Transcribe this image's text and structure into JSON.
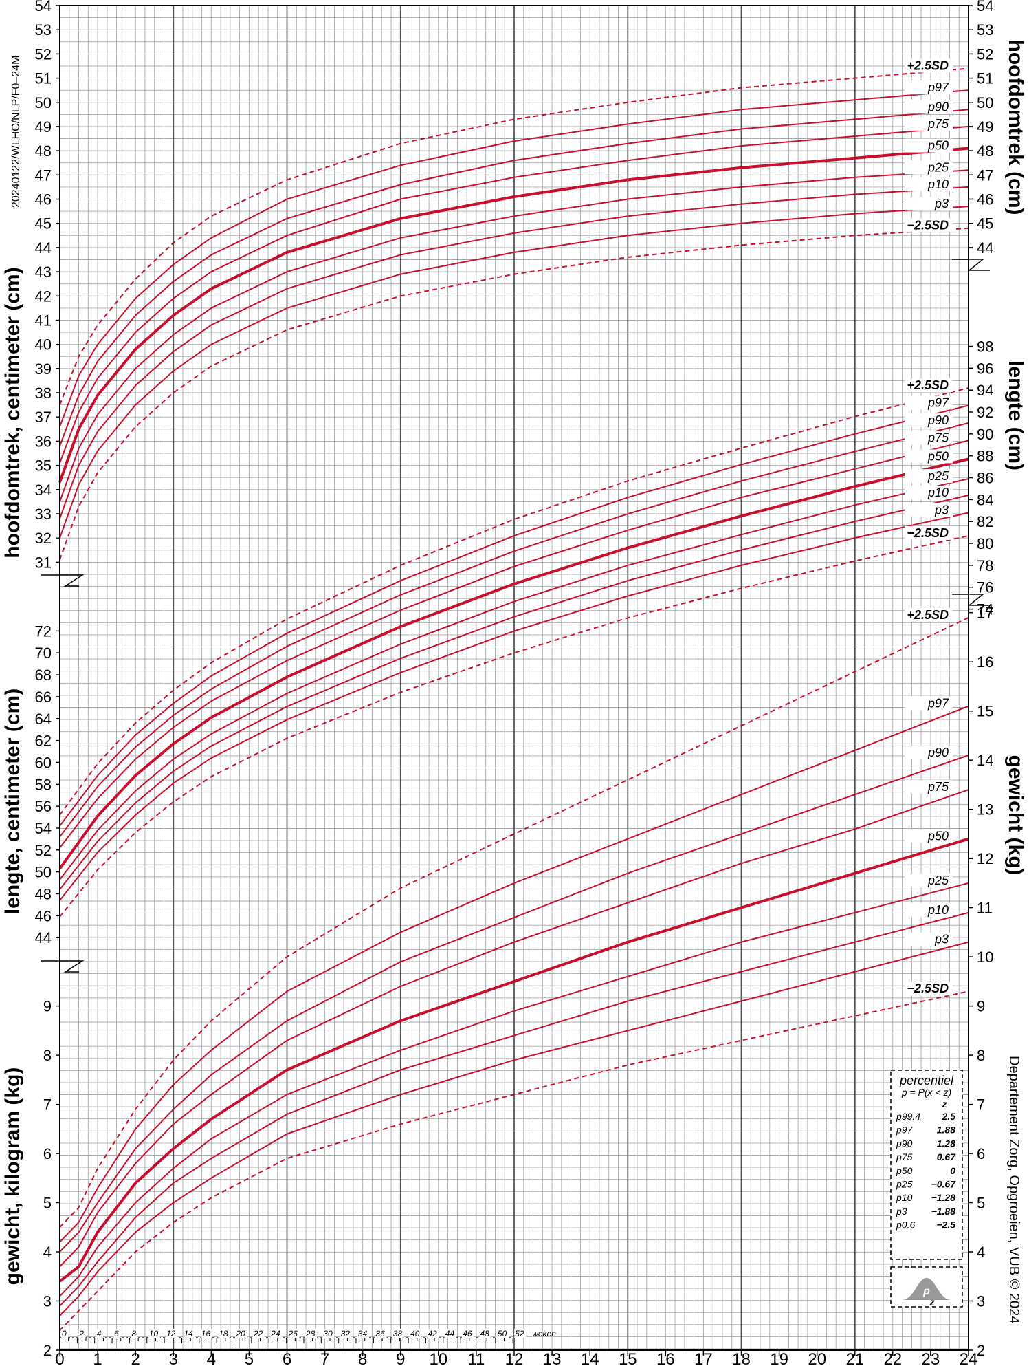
{
  "chart_data": {
    "type": "line",
    "doc_code": "20240122/WLHC/NLP/F0–24M",
    "credit": "Departement Zorg, Opgroeien, VUB © 2024",
    "x_axis": {
      "unit_label": "weken",
      "month_ticks": [
        "0",
        "1",
        "2",
        "3",
        "4",
        "5",
        "6",
        "7",
        "8",
        "9",
        "10",
        "11",
        "12",
        "13",
        "14",
        "15",
        "16",
        "17",
        "18",
        "19",
        "20",
        "21",
        "22",
        "23",
        "24"
      ],
      "week_ticks": [
        "0",
        "2",
        "4",
        "6",
        "8",
        "10",
        "12",
        "14",
        "16",
        "18",
        "20",
        "22",
        "24",
        "26",
        "28",
        "30",
        "32",
        "34",
        "36",
        "38",
        "40",
        "42",
        "44",
        "46",
        "48",
        "50",
        "52"
      ],
      "xlim": [
        0,
        24
      ]
    },
    "legend": {
      "title": "percentiel",
      "formula": "p = P(x < z)",
      "z_header": "z",
      "rows": [
        {
          "p": "p99.4",
          "z": "2.5"
        },
        {
          "p": "p97",
          "z": "1.88"
        },
        {
          "p": "p90",
          "z": "1.28"
        },
        {
          "p": "p75",
          "z": "0.67"
        },
        {
          "p": "p50",
          "z": "0"
        },
        {
          "p": "p25",
          "z": "−0.67"
        },
        {
          "p": "p10",
          "z": "−1.28"
        },
        {
          "p": "p3",
          "z": "−1.88"
        },
        {
          "p": "p0.6",
          "z": "−2.5"
        }
      ],
      "icon_p": "p",
      "icon_z": "z"
    },
    "curve_labels": [
      "+2.5SD",
      "p97",
      "p90",
      "p75",
      "p50",
      "p25",
      "p10",
      "p3",
      "−2.5SD"
    ],
    "panels": [
      {
        "id": "head",
        "left_title": "hoofdomtrek, centimeter (cm)",
        "right_title": "hoofdomtrek (cm)",
        "left_ticks": [
          "31",
          "32",
          "33",
          "34",
          "35",
          "36",
          "37",
          "38",
          "39",
          "40",
          "41",
          "42",
          "43",
          "44",
          "45",
          "46",
          "47",
          "48",
          "49",
          "50",
          "51",
          "52",
          "53",
          "54"
        ],
        "right_ticks": [
          "44",
          "45",
          "46",
          "47",
          "48",
          "49",
          "50",
          "51",
          "52",
          "53",
          "54"
        ],
        "ylim": [
          30.3,
          54
        ],
        "x": [
          0,
          0.5,
          1,
          2,
          3,
          4,
          6,
          9,
          12,
          15,
          18,
          21,
          24
        ],
        "series": [
          {
            "name": "+2.5SD",
            "values": [
              37.5,
              39.5,
              40.8,
              42.7,
              44.2,
              45.3,
              46.8,
              48.3,
              49.3,
              50.0,
              50.6,
              51.0,
              51.4
            ]
          },
          {
            "name": "p97",
            "values": [
              36.6,
              38.7,
              40.0,
              41.9,
              43.3,
              44.4,
              46.0,
              47.4,
              48.4,
              49.1,
              49.7,
              50.1,
              50.5
            ]
          },
          {
            "name": "p90",
            "values": [
              35.8,
              37.9,
              39.3,
              41.2,
              42.6,
              43.7,
              45.2,
              46.6,
              47.6,
              48.3,
              48.9,
              49.3,
              49.7
            ]
          },
          {
            "name": "p75",
            "values": [
              35.1,
              37.2,
              38.6,
              40.5,
              41.9,
              43.0,
              44.5,
              46.0,
              46.9,
              47.6,
              48.2,
              48.6,
              49.0
            ]
          },
          {
            "name": "p50",
            "values": [
              34.3,
              36.5,
              37.9,
              39.8,
              41.2,
              42.3,
              43.8,
              45.2,
              46.1,
              46.8,
              47.3,
              47.7,
              48.1
            ]
          },
          {
            "name": "p25",
            "values": [
              33.5,
              35.7,
              37.1,
              39.0,
              40.4,
              41.5,
              43.0,
              44.4,
              45.3,
              46.0,
              46.5,
              46.9,
              47.2
            ]
          },
          {
            "name": "p10",
            "values": [
              32.8,
              35.0,
              36.4,
              38.3,
              39.7,
              40.8,
              42.3,
              43.7,
              44.6,
              45.3,
              45.8,
              46.2,
              46.5
            ]
          },
          {
            "name": "p3",
            "values": [
              32.0,
              34.2,
              35.6,
              37.5,
              38.9,
              40.0,
              41.5,
              42.9,
              43.8,
              44.5,
              45.0,
              45.4,
              45.7
            ]
          },
          {
            "name": "−2.5SD",
            "values": [
              31.1,
              33.3,
              34.7,
              36.6,
              38.0,
              39.1,
              40.6,
              42.0,
              42.9,
              43.6,
              44.1,
              44.5,
              44.8
            ]
          }
        ]
      },
      {
        "id": "length",
        "left_title": "lengte, centimeter (cm)",
        "right_title": "lengte (cm)",
        "left_ticks": [
          "44",
          "46",
          "48",
          "50",
          "52",
          "54",
          "56",
          "58",
          "60",
          "62",
          "64",
          "66",
          "68",
          "70",
          "72"
        ],
        "right_ticks": [
          "74",
          "76",
          "78",
          "80",
          "82",
          "84",
          "86",
          "88",
          "90",
          "92",
          "94",
          "96",
          "98"
        ],
        "ylim": [
          42,
          99.6
        ],
        "x": [
          0,
          1,
          2,
          3,
          4,
          6,
          9,
          12,
          15,
          18,
          21,
          24
        ],
        "series": [
          {
            "name": "+2.5SD",
            "values": [
              55.2,
              59.9,
              63.6,
              66.6,
              69.1,
              73.1,
              78.0,
              82.2,
              85.7,
              88.7,
              91.6,
              94.2
            ]
          },
          {
            "name": "p97",
            "values": [
              54.2,
              58.8,
              62.5,
              65.4,
              67.9,
              71.8,
              76.6,
              80.7,
              84.2,
              87.2,
              90.0,
              92.6
            ]
          },
          {
            "name": "p90",
            "values": [
              53.2,
              57.8,
              61.4,
              64.3,
              66.7,
              70.6,
              75.3,
              79.3,
              82.7,
              85.7,
              88.4,
              91.0
            ]
          },
          {
            "name": "p75",
            "values": [
              52.2,
              56.7,
              60.3,
              63.2,
              65.6,
              69.3,
              73.9,
              77.9,
              81.2,
              84.2,
              86.8,
              89.4
            ]
          },
          {
            "name": "p50",
            "values": [
              50.3,
              55.1,
              58.8,
              61.7,
              64.1,
              67.8,
              72.4,
              76.3,
              79.6,
              82.5,
              85.2,
              87.7
            ]
          },
          {
            "name": "p25",
            "values": [
              49.3,
              53.8,
              57.4,
              60.3,
              62.6,
              66.3,
              70.8,
              74.7,
              78.0,
              80.8,
              83.5,
              85.9
            ]
          },
          {
            "name": "p10",
            "values": [
              48.4,
              52.8,
              56.3,
              59.2,
              61.5,
              65.1,
              69.5,
              73.3,
              76.6,
              79.4,
              82.0,
              84.4
            ]
          },
          {
            "name": "p3",
            "values": [
              47.4,
              51.8,
              55.2,
              58.1,
              60.4,
              63.9,
              68.2,
              72.0,
              75.2,
              78.0,
              80.5,
              82.8
            ]
          },
          {
            "name": "−2.5SD",
            "values": [
              45.9,
              50.2,
              53.6,
              56.4,
              58.7,
              62.2,
              66.4,
              70.0,
              73.2,
              75.9,
              78.4,
              80.7
            ]
          }
        ]
      },
      {
        "id": "weight",
        "left_title": "gewicht, kilogram (kg)",
        "right_title": "gewicht (kg)",
        "left_ticks": [
          "2",
          "3",
          "4",
          "5",
          "6",
          "7",
          "8",
          "9"
        ],
        "right_ticks": [
          "2",
          "3",
          "4",
          "5",
          "6",
          "7",
          "8",
          "9",
          "10",
          "11",
          "12",
          "13",
          "14",
          "15",
          "16",
          "17"
        ],
        "ylim": [
          2,
          17.5
        ],
        "x": [
          0,
          0.5,
          1,
          2,
          3,
          4,
          6,
          9,
          12,
          15,
          18,
          21,
          24
        ],
        "series": [
          {
            "name": "+2.5SD",
            "values": [
              4.5,
              4.9,
              5.7,
              6.9,
              7.9,
              8.7,
              10.0,
              11.4,
              12.5,
              13.6,
              14.7,
              15.8,
              16.9
            ]
          },
          {
            "name": "p97",
            "values": [
              4.2,
              4.6,
              5.3,
              6.5,
              7.4,
              8.1,
              9.3,
              10.5,
              11.5,
              12.4,
              13.3,
              14.2,
              15.1
            ]
          },
          {
            "name": "p90",
            "values": [
              4.0,
              4.4,
              5.0,
              6.1,
              6.9,
              7.6,
              8.7,
              9.9,
              10.8,
              11.7,
              12.5,
              13.3,
              14.1
            ]
          },
          {
            "name": "p75",
            "values": [
              3.7,
              4.1,
              4.8,
              5.8,
              6.6,
              7.2,
              8.3,
              9.4,
              10.3,
              11.1,
              11.9,
              12.6,
              13.4
            ]
          },
          {
            "name": "p50",
            "values": [
              3.4,
              3.7,
              4.4,
              5.4,
              6.1,
              6.7,
              7.7,
              8.7,
              9.5,
              10.3,
              11.0,
              11.7,
              12.4
            ]
          },
          {
            "name": "p25",
            "values": [
              3.1,
              3.5,
              4.1,
              5.0,
              5.7,
              6.3,
              7.2,
              8.1,
              8.9,
              9.6,
              10.3,
              10.9,
              11.5
            ]
          },
          {
            "name": "p10",
            "values": [
              2.9,
              3.3,
              3.8,
              4.7,
              5.4,
              5.9,
              6.8,
              7.7,
              8.4,
              9.1,
              9.7,
              10.3,
              10.9
            ]
          },
          {
            "name": "p3",
            "values": [
              2.7,
              3.1,
              3.6,
              4.4,
              5.0,
              5.5,
              6.4,
              7.2,
              7.9,
              8.5,
              9.1,
              9.7,
              10.3
            ]
          },
          {
            "name": "−2.5SD",
            "values": [
              2.4,
              2.8,
              3.2,
              4.0,
              4.6,
              5.1,
              5.9,
              6.6,
              7.2,
              7.8,
              8.3,
              8.8,
              9.3
            ]
          }
        ]
      }
    ]
  },
  "colors": {
    "curve": "#c8102e",
    "grid": "#a9a9a9",
    "major_grid": "#555555",
    "legend_fill": "#999999"
  }
}
